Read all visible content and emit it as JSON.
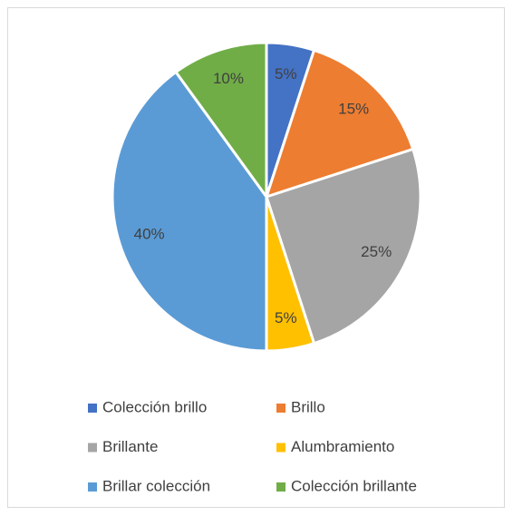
{
  "chart_data": {
    "type": "pie",
    "categories": [
      "Colección brillo",
      "Brillo",
      "Brillante",
      "Alumbramiento",
      "Brillar colección",
      "Colección brillante"
    ],
    "values": [
      5,
      15,
      25,
      5,
      40,
      10
    ],
    "value_labels": [
      "5%",
      "15%",
      "25%",
      "5%",
      "40%",
      "10%"
    ],
    "colors": [
      "#4472c4",
      "#ed7d31",
      "#a5a5a5",
      "#ffc000",
      "#5b9bd5",
      "#70ad47"
    ],
    "legend": "bottom"
  }
}
